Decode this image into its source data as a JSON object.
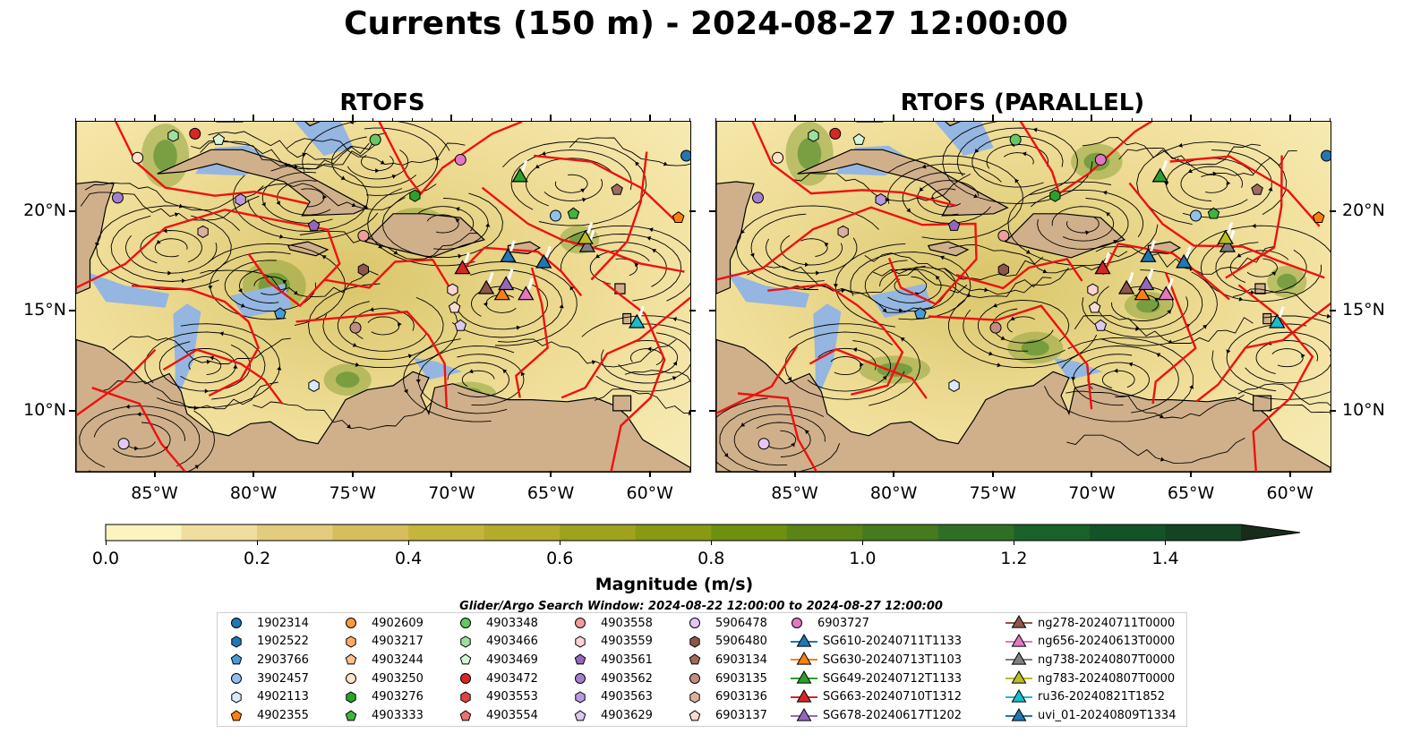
{
  "title": "Currents (150 m) - 2024-08-27 12:00:00",
  "panels": [
    {
      "title": "RTOFS"
    },
    {
      "title": "RTOFS (PARALLEL)"
    }
  ],
  "map": {
    "lon_range": [
      -89,
      -58
    ],
    "lat_range": [
      7,
      24.5
    ],
    "x_ticks": [
      "85°W",
      "80°W",
      "75°W",
      "70°W",
      "65°W",
      "60°W"
    ],
    "x_tick_values": [
      -85,
      -80,
      -75,
      -70,
      -65,
      -60
    ],
    "y_ticks": [
      "20°N",
      "15°N",
      "10°N"
    ],
    "y_tick_values": [
      20,
      15,
      10
    ],
    "colors": {
      "land": "#d0b08a",
      "shallow_water": "#94b6e0",
      "front_lines": "#ee1111",
      "streamlines": "#000000",
      "coastline": "#000000"
    }
  },
  "colorbar": {
    "label": "Magnitude (m/s)",
    "ticks": [
      "0.0",
      "0.2",
      "0.4",
      "0.6",
      "0.8",
      "1.0",
      "1.2",
      "1.4"
    ],
    "tick_values": [
      0.0,
      0.2,
      0.4,
      0.6,
      0.8,
      1.0,
      1.2,
      1.4
    ],
    "range": [
      0.0,
      1.5
    ],
    "extend": "max",
    "colors": [
      "#fbf4be",
      "#f0dea0",
      "#e3cc7e",
      "#d5be5b",
      "#c4b53d",
      "#b2ac2a",
      "#9ea21d",
      "#879a12",
      "#6e900f",
      "#5a8415",
      "#457a1e",
      "#2f6f25",
      "#1a6228",
      "#125427",
      "#144523",
      "#16381f",
      "#172c1a"
    ]
  },
  "search_window": "Glider/Argo Search Window: 2024-08-22 12:00:00 to 2024-08-27 12:00:00",
  "legend": [
    {
      "label": "1902314",
      "marker": "circle",
      "color": "#1f77b4"
    },
    {
      "label": "1902522",
      "marker": "hexagon",
      "color": "#1f77b4"
    },
    {
      "label": "2903766",
      "marker": "pentagon",
      "color": "#4a9ad8"
    },
    {
      "label": "3902457",
      "marker": "circle",
      "color": "#8fc1ec"
    },
    {
      "label": "4902113",
      "marker": "hexagon",
      "color": "#daeafa"
    },
    {
      "label": "4902355",
      "marker": "pentagon",
      "color": "#ff7f0e"
    },
    {
      "label": "4902609",
      "marker": "circle",
      "color": "#ff9a3c"
    },
    {
      "label": "4903217",
      "marker": "hexagon",
      "color": "#ffaa66"
    },
    {
      "label": "4903244",
      "marker": "pentagon",
      "color": "#ffc08a"
    },
    {
      "label": "4903250",
      "marker": "circle",
      "color": "#ffe3c4"
    },
    {
      "label": "4903276",
      "marker": "hexagon",
      "color": "#2ca02c"
    },
    {
      "label": "4903333",
      "marker": "pentagon",
      "color": "#3fb43f"
    },
    {
      "label": "4903348",
      "marker": "circle",
      "color": "#64c864"
    },
    {
      "label": "4903466",
      "marker": "hexagon",
      "color": "#9ee09e"
    },
    {
      "label": "4903469",
      "marker": "pentagon",
      "color": "#d6f5d6"
    },
    {
      "label": "4903472",
      "marker": "circle",
      "color": "#d62728"
    },
    {
      "label": "4903553",
      "marker": "hexagon",
      "color": "#e04444"
    },
    {
      "label": "4903554",
      "marker": "pentagon",
      "color": "#f07070"
    },
    {
      "label": "4903558",
      "marker": "circle",
      "color": "#f49c9c"
    },
    {
      "label": "4903559",
      "marker": "hexagon",
      "color": "#fcd2d2"
    },
    {
      "label": "4903561",
      "marker": "pentagon",
      "color": "#9467bd"
    },
    {
      "label": "4903562",
      "marker": "circle",
      "color": "#a47fd0"
    },
    {
      "label": "4903563",
      "marker": "hexagon",
      "color": "#b99ae0"
    },
    {
      "label": "4903629",
      "marker": "pentagon",
      "color": "#dcc8f0"
    },
    {
      "label": "5906478",
      "marker": "circle",
      "color": "#e3c8f5"
    },
    {
      "label": "5906480",
      "marker": "hexagon",
      "color": "#8c564b"
    },
    {
      "label": "6903134",
      "marker": "pentagon",
      "color": "#a06a5e"
    },
    {
      "label": "6903135",
      "marker": "circle",
      "color": "#c08e80"
    },
    {
      "label": "6903136",
      "marker": "hexagon",
      "color": "#dcb0a0"
    },
    {
      "label": "6903137",
      "marker": "pentagon",
      "color": "#f8dcd2"
    },
    {
      "label": "6903727",
      "marker": "circle",
      "color": "#e377c2"
    },
    {
      "label": "SG610-20240711T1133",
      "marker": "triangle-line",
      "color": "#1f77b4"
    },
    {
      "label": "SG630-20240713T1103",
      "marker": "triangle-line",
      "color": "#ff7f0e"
    },
    {
      "label": "SG649-20240712T1133",
      "marker": "triangle-line",
      "color": "#2ca02c"
    },
    {
      "label": "SG663-20240710T1312",
      "marker": "triangle-line",
      "color": "#d62728"
    },
    {
      "label": "SG678-20240617T1202",
      "marker": "triangle-line",
      "color": "#9467bd"
    },
    {
      "label": "ng278-20240711T0000",
      "marker": "triangle-line",
      "color": "#8c564b"
    },
    {
      "label": "ng656-20240613T0000",
      "marker": "triangle-line",
      "color": "#e377c2"
    },
    {
      "label": "ng738-20240807T0000",
      "marker": "triangle-line",
      "color": "#7f7f7f"
    },
    {
      "label": "ng783-20240807T0000",
      "marker": "triangle-line",
      "color": "#bcbd22"
    },
    {
      "label": "ru36-20240821T1852",
      "marker": "triangle-line",
      "color": "#17becf"
    },
    {
      "label": "uvi_01-20240809T1334",
      "marker": "triangle-line",
      "color": "#1f77b4"
    }
  ],
  "floats": [
    {
      "id": "1902314",
      "lon": -58.2,
      "lat": 22.8
    },
    {
      "id": "2903766",
      "lon": -78.7,
      "lat": 14.9
    },
    {
      "id": "3902457",
      "lon": -64.8,
      "lat": 19.8
    },
    {
      "id": "4902113",
      "lon": -77.0,
      "lat": 11.3
    },
    {
      "id": "4902355",
      "lon": -58.6,
      "lat": 19.7
    },
    {
      "id": "4903250",
      "lon": -85.9,
      "lat": 22.7
    },
    {
      "id": "4903276",
      "lon": -71.9,
      "lat": 20.8
    },
    {
      "id": "4903333",
      "lon": -63.9,
      "lat": 19.9
    },
    {
      "id": "4903348",
      "lon": -73.9,
      "lat": 23.6
    },
    {
      "id": "4903466",
      "lon": -84.1,
      "lat": 23.8
    },
    {
      "id": "4903469",
      "lon": -81.8,
      "lat": 23.6
    },
    {
      "id": "4903472",
      "lon": -83.0,
      "lat": 23.9
    },
    {
      "id": "4903558",
      "lon": -74.5,
      "lat": 18.8
    },
    {
      "id": "4903559",
      "lon": -70.0,
      "lat": 16.1
    },
    {
      "id": "4903561",
      "lon": -77.0,
      "lat": 19.3
    },
    {
      "id": "4903562",
      "lon": -86.9,
      "lat": 20.7
    },
    {
      "id": "4903563",
      "lon": -80.7,
      "lat": 20.6
    },
    {
      "id": "4903629",
      "lon": -69.6,
      "lat": 14.3
    },
    {
      "id": "5906478",
      "lon": -86.6,
      "lat": 8.4
    },
    {
      "id": "5906480",
      "lon": -74.5,
      "lat": 17.1
    },
    {
      "id": "6903135",
      "lon": -74.9,
      "lat": 14.2
    },
    {
      "id": "6903136",
      "lon": -82.6,
      "lat": 19.0
    },
    {
      "id": "6903137",
      "lon": -69.9,
      "lat": 15.2
    },
    {
      "id": "6903727",
      "lon": -69.6,
      "lat": 22.6
    },
    {
      "id": "6903134",
      "lon": -61.7,
      "lat": 21.1
    }
  ],
  "gliders": [
    {
      "id": "SG610-20240711T1133",
      "lon": -67.2,
      "lat": 17.8
    },
    {
      "id": "SG630-20240713T1103",
      "lon": -67.5,
      "lat": 15.9
    },
    {
      "id": "SG649-20240712T1133",
      "lon": -66.6,
      "lat": 21.8
    },
    {
      "id": "SG663-20240710T1312",
      "lon": -69.5,
      "lat": 17.2
    },
    {
      "id": "SG678-20240617T1202",
      "lon": -67.3,
      "lat": 16.4
    },
    {
      "id": "ng278-20240711T0000",
      "lon": -68.3,
      "lat": 16.2
    },
    {
      "id": "ng656-20240613T0000",
      "lon": -66.3,
      "lat": 15.9
    },
    {
      "id": "ng738-20240807T0000",
      "lon": -63.2,
      "lat": 18.3
    },
    {
      "id": "ng783-20240807T0000",
      "lon": -63.3,
      "lat": 18.7
    },
    {
      "id": "ru36-20240821T1852",
      "lon": -60.7,
      "lat": 14.5
    },
    {
      "id": "uvi_01-20240809T1334",
      "lon": -65.4,
      "lat": 17.5
    }
  ]
}
